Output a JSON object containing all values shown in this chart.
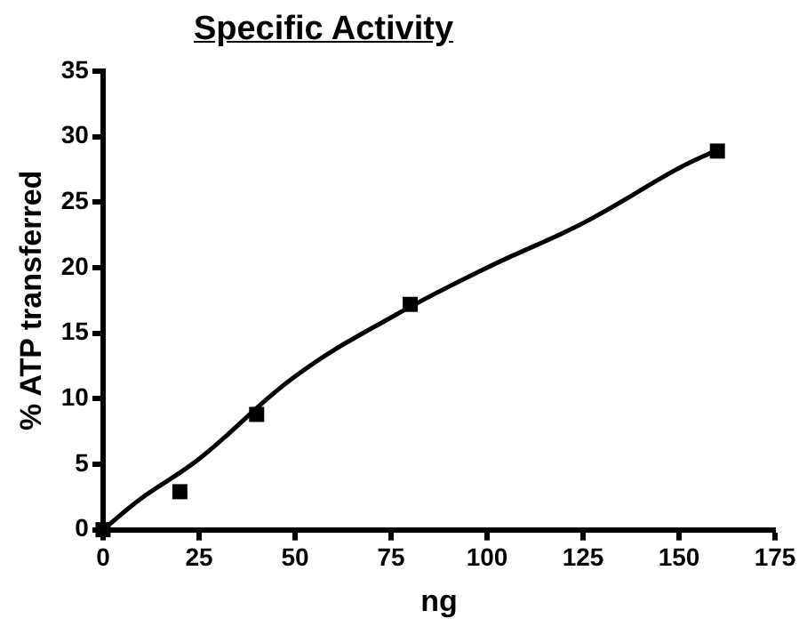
{
  "chart_data": {
    "type": "scatter",
    "title": "Specific Activity",
    "xlabel": "ng",
    "ylabel": "% ATP transferred",
    "x": [
      0,
      20,
      40,
      80,
      160
    ],
    "series": [
      {
        "type": "scatter",
        "color": "#000000",
        "marker": "square",
        "values": [
          0,
          2.9,
          8.8,
          17.2,
          28.9
        ]
      },
      {
        "type": "line",
        "color": "#000000",
        "marker": "none",
        "line_style": "solid",
        "x": [
          0,
          10,
          25,
          50,
          75,
          100,
          125,
          150,
          160
        ],
        "values": [
          0,
          2.4,
          5.4,
          11.7,
          16.2,
          20,
          23.4,
          27.6,
          29
        ]
      }
    ],
    "xlim": [
      0,
      175
    ],
    "xticks": [
      0,
      25,
      50,
      75,
      100,
      125,
      150,
      175
    ],
    "ylim": [
      0,
      35
    ],
    "yticks": [
      0,
      5,
      10,
      15,
      20,
      25,
      30,
      35
    ],
    "grid": false,
    "legend": false
  }
}
